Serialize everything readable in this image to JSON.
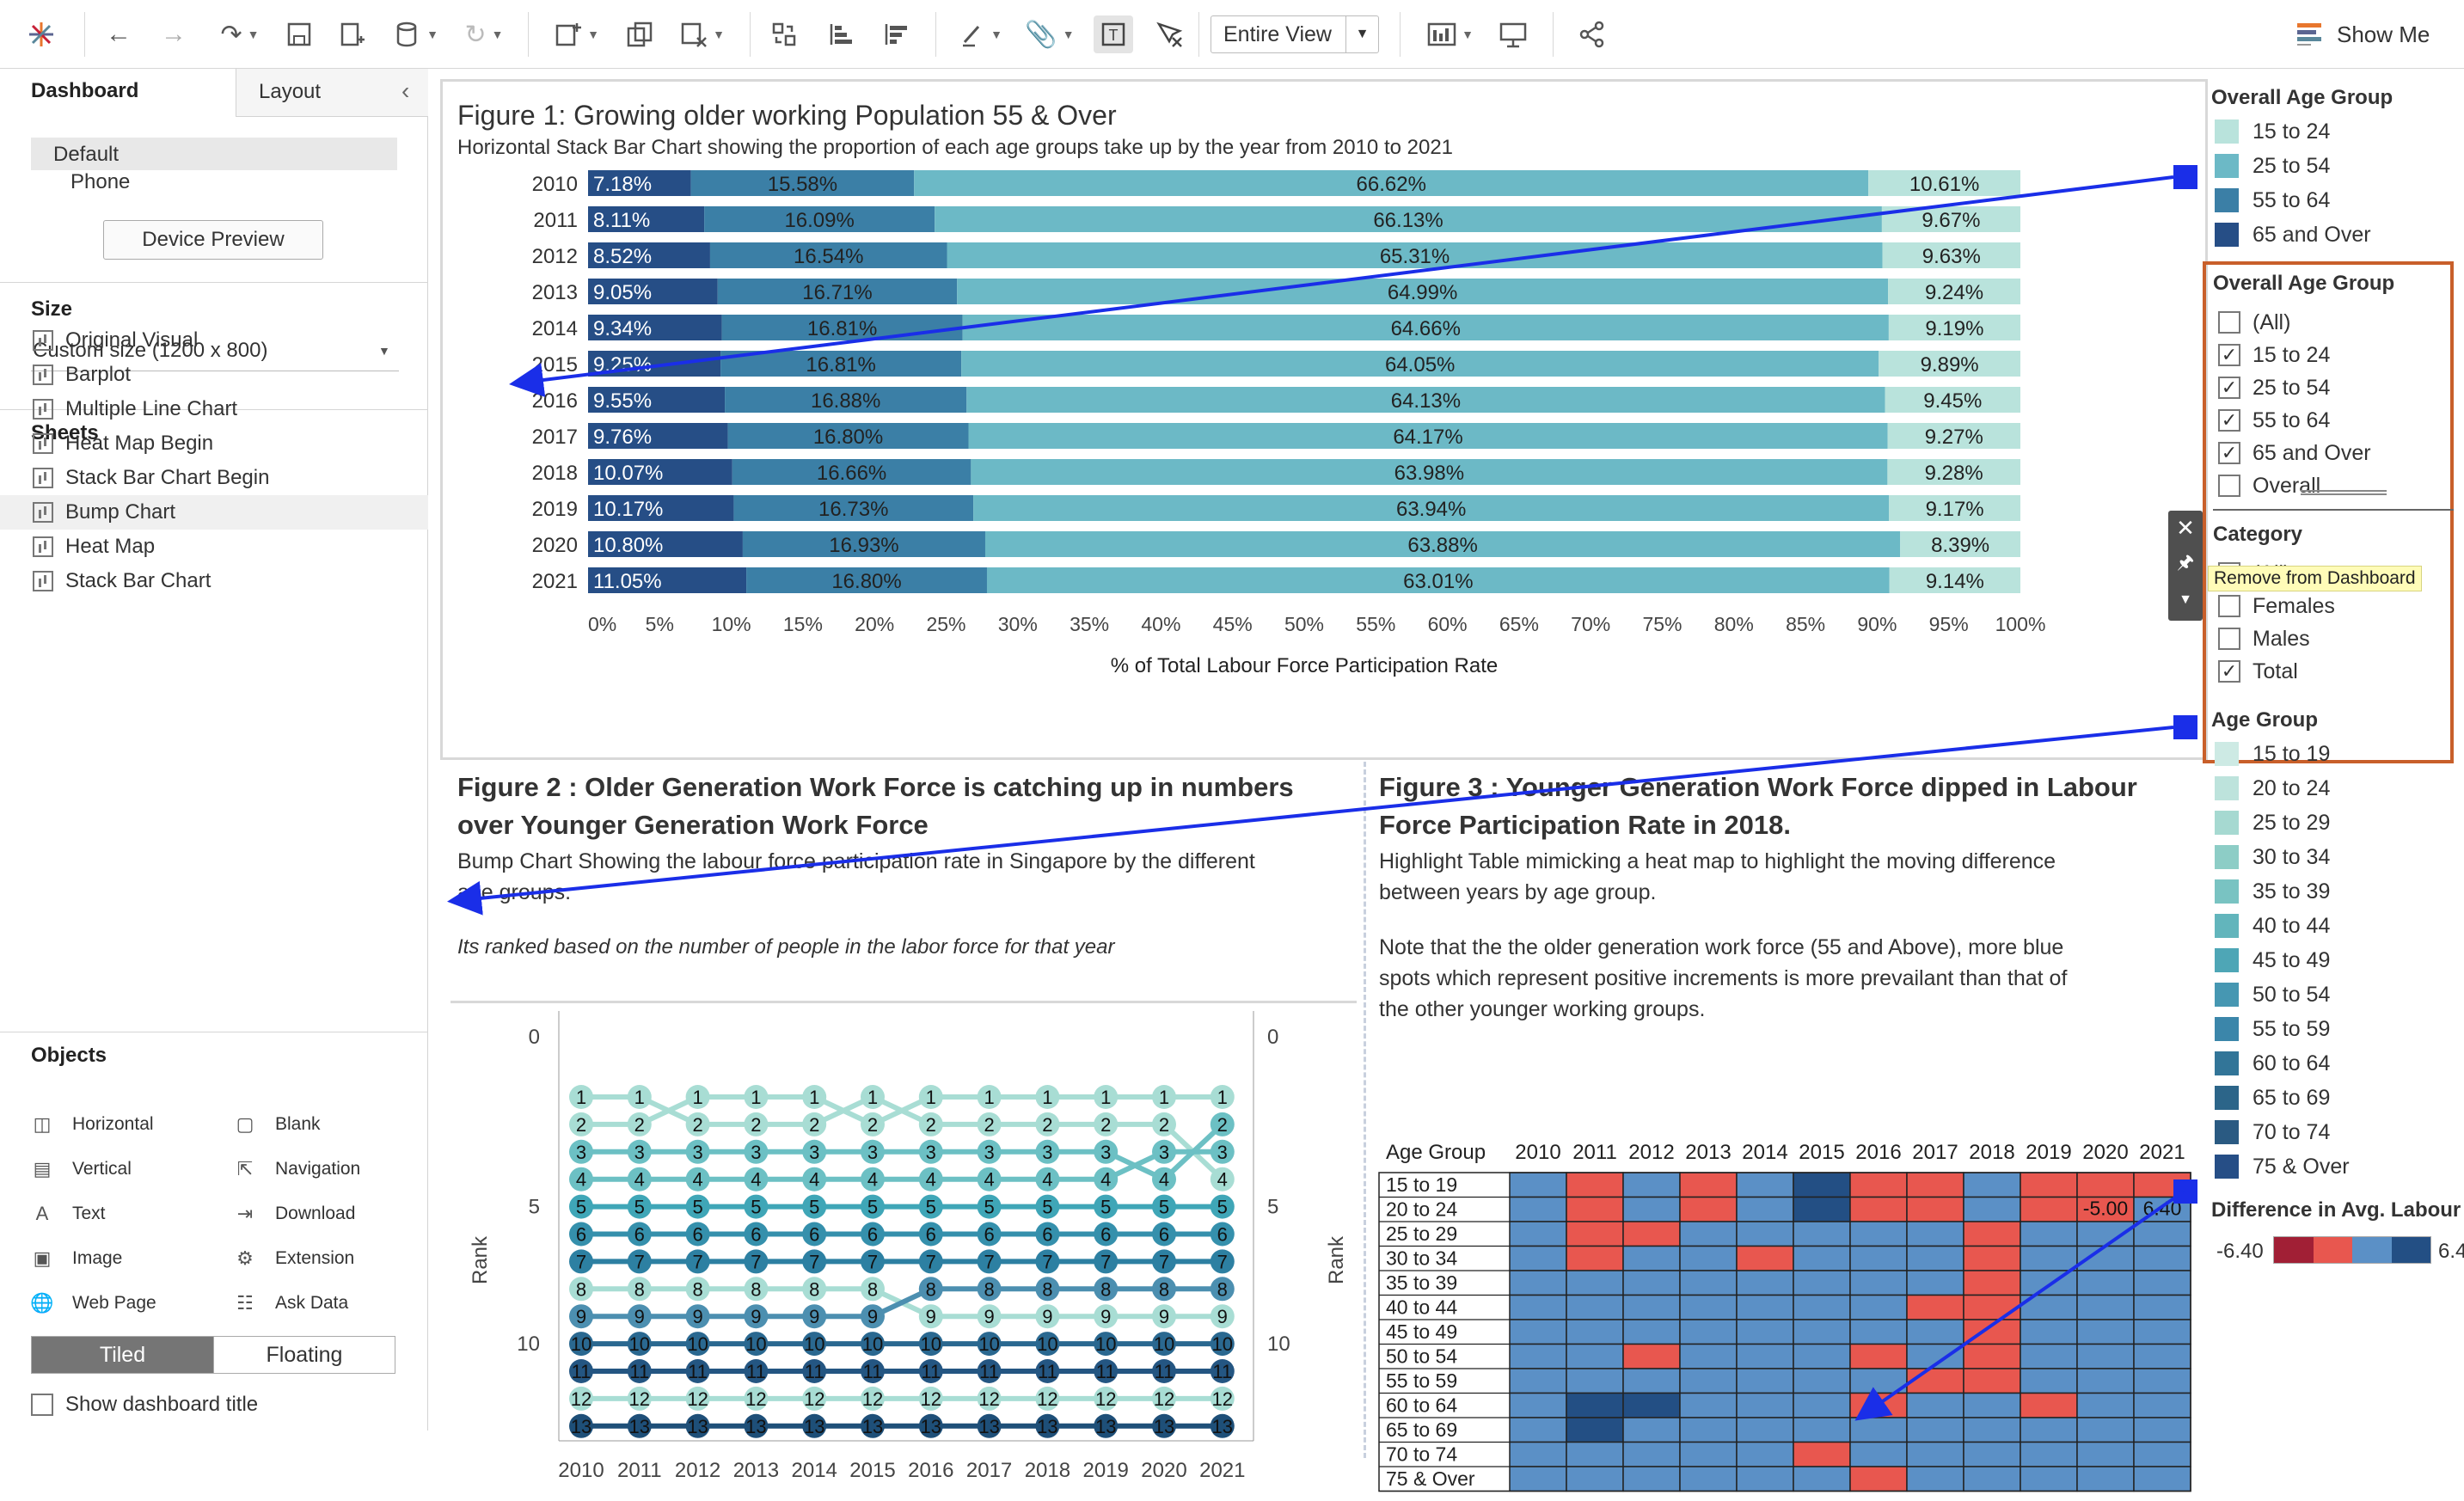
{
  "toolbar": {
    "view_select": "Entire View",
    "show_me": "Show Me"
  },
  "left_panel": {
    "tabs": [
      "Dashboard",
      "Layout"
    ],
    "devices": [
      "Default",
      "Phone"
    ],
    "device_preview": "Device Preview",
    "size_label": "Size",
    "size_value": "Custom size (1200 x 800)",
    "sheets_label": "Sheets",
    "sheets": [
      "Original Visual",
      "Barplot",
      "Multiple Line Chart",
      "Heat Map Begin",
      "Stack Bar Chart Begin",
      "Bump Chart",
      "Heat Map",
      "Stack Bar Chart"
    ],
    "objects_label": "Objects",
    "objects": [
      [
        "Horizontal",
        "Blank"
      ],
      [
        "Vertical",
        "Navigation"
      ],
      [
        "Text",
        "Download"
      ],
      [
        "Image",
        "Extension"
      ],
      [
        "Web Page",
        "Ask Data"
      ]
    ],
    "layout_modes": [
      "Tiled",
      "Floating"
    ],
    "show_title": "Show dashboard title"
  },
  "fig1": {
    "title": "Figure 1: Growing older working Population 55 & Over",
    "subtitle": "Horizontal Stack Bar Chart showing the proportion of each age groups take up by the year from 2010 to 2021",
    "xlabel": "% of Total Labour Force Participation Rate"
  },
  "fig2": {
    "title_line1": "Figure 2 : Older Generation Work Force is catching up in numbers",
    "title_line2": "over  Younger Generation Work Force",
    "sub1": "Bump Chart Showing the labour force participation rate in Singapore by the different",
    "sub2": "age groups.",
    "note": "Its ranked based on the number of people in the labor force for that year",
    "ylabel": "Rank"
  },
  "fig3": {
    "title_line1": "Figure 3 : Younger Generation Work Force dipped in Labour",
    "title_line2": "Force Participation Rate in 2018.",
    "sub1": "Highlight Table mimicking a heat map to highlight the moving difference",
    "sub2": "between years by age group.",
    "note1": "Note that the the older generation work force (55 and Above), more blue",
    "note2": "spots which represent positive increments is more  prevailant than that of",
    "note3": "the other younger working groups.",
    "col_header": "Age Group"
  },
  "right_panel": {
    "legend1_title": "Overall Age Group",
    "legend1": [
      "15 to 24",
      "25 to 54",
      "55 to 64",
      "65 and Over"
    ],
    "filter1_title": "Overall Age Group",
    "filter1": [
      "(All)",
      "15 to 24",
      "25 to 54",
      "55 to 64",
      "65 and Over",
      "Overall"
    ],
    "filter1_checked": [
      false,
      true,
      true,
      true,
      true,
      false
    ],
    "filter2_title": "Category",
    "filter2": [
      "(All)",
      "Females",
      "Males",
      "Total"
    ],
    "filter2_checked": [
      false,
      false,
      false,
      true
    ],
    "tooltip": "Remove from Dashboard",
    "legend2_title": "Age Group",
    "legend2": [
      "15 to 19",
      "20 to 24",
      "25 to 29",
      "30 to 34",
      "35 to 39",
      "40 to 44",
      "45 to 49",
      "50 to 54",
      "55 to 59",
      "60 to 64",
      "65 to 69",
      "70 to 74",
      "75 & Over"
    ],
    "diff_title": "Difference in Avg. Labour",
    "diff_min": "-6.40",
    "diff_max": "6.4"
  },
  "colors": {
    "a15": "#b9e3dc",
    "a25": "#6cb9c6",
    "a55": "#3b7fa6",
    "a65": "#264e86",
    "heat_pos": "#5b90c6",
    "heat_neg": "#e8574f",
    "heat_dark": "#234f84",
    "accent": "#c85f2a",
    "arrow": "#1a2ee8"
  },
  "chart_data": [
    {
      "type": "bar",
      "title": "Figure 1: Growing older working Population 55 & Over",
      "xlabel": "% of Total Labour Force Participation Rate",
      "categories": [
        "2010",
        "2011",
        "2012",
        "2013",
        "2014",
        "2015",
        "2016",
        "2017",
        "2018",
        "2019",
        "2020",
        "2021"
      ],
      "series": [
        {
          "name": "65 and Over",
          "values": [
            7.18,
            8.11,
            8.52,
            9.05,
            9.34,
            9.25,
            9.55,
            9.76,
            10.07,
            10.17,
            10.8,
            11.05
          ]
        },
        {
          "name": "55 to 64",
          "values": [
            15.58,
            16.09,
            16.54,
            16.71,
            16.81,
            16.81,
            16.88,
            16.8,
            16.66,
            16.73,
            16.93,
            16.8
          ]
        },
        {
          "name": "25 to 54",
          "values": [
            66.62,
            66.13,
            65.31,
            64.99,
            64.66,
            64.05,
            64.13,
            64.17,
            63.98,
            63.94,
            63.88,
            63.01
          ]
        },
        {
          "name": "15 to 24",
          "values": [
            10.61,
            9.67,
            9.63,
            9.24,
            9.19,
            9.89,
            9.45,
            9.27,
            9.28,
            9.17,
            8.39,
            9.14
          ]
        }
      ],
      "labels": [
        [
          "7.18%",
          "15.58%",
          "66.62%",
          "10.61%"
        ],
        [
          "8.11%",
          "16.09%",
          "66.13%",
          "9.67%"
        ],
        [
          "8.52%",
          "16.54%",
          "65.31%",
          "9.63%"
        ],
        [
          "9.05%",
          "16.71%",
          "64.99%",
          "9.24%"
        ],
        [
          "9.34%",
          "16.81%",
          "64.66%",
          "9.19%"
        ],
        [
          "9.25%",
          "16.81%",
          "64.05%",
          "9.89%"
        ],
        [
          "9.55%",
          "16.88%",
          "64.13%",
          "9.45%"
        ],
        [
          "9.76%",
          "16.80%",
          "64.17%",
          "9.27%"
        ],
        [
          "10.07%",
          "16.66%",
          "63.98%",
          "9.28%"
        ],
        [
          "10.17%",
          "16.73%",
          "63.94%",
          "9.17%"
        ],
        [
          "10.80%",
          "16.93%",
          "63.88%",
          "8.39%"
        ],
        [
          "11.05%",
          "16.80%",
          "63.01%",
          "9.14%"
        ]
      ],
      "x_ticks": [
        "0%",
        "5%",
        "10%",
        "15%",
        "20%",
        "25%",
        "30%",
        "35%",
        "40%",
        "45%",
        "50%",
        "55%",
        "60%",
        "65%",
        "70%",
        "75%",
        "80%",
        "85%",
        "90%",
        "95%",
        "100%"
      ],
      "xlim": [
        0,
        100
      ]
    },
    {
      "type": "line",
      "title": "Figure 2 : Older Generation Work Force is catching up in numbers over  Younger Generation Work Force",
      "x": [
        "2010",
        "2011",
        "2012",
        "2013",
        "2014",
        "2015",
        "2016",
        "2017",
        "2018",
        "2019",
        "2020",
        "2021"
      ],
      "ylabel": "Rank",
      "y_ticks": [
        "0",
        "5",
        "10"
      ],
      "ylim": [
        0,
        13
      ],
      "series": [
        {
          "values": [
            1,
            1,
            2,
            2,
            2,
            1,
            2,
            2,
            2,
            2,
            2,
            4
          ]
        },
        {
          "values": [
            2,
            2,
            1,
            1,
            1,
            2,
            1,
            1,
            1,
            1,
            1,
            1
          ]
        },
        {
          "values": [
            3,
            3,
            3,
            3,
            3,
            3,
            3,
            3,
            3,
            3,
            4,
            2
          ]
        },
        {
          "values": [
            4,
            4,
            4,
            4,
            4,
            4,
            4,
            4,
            4,
            4,
            3,
            3
          ]
        },
        {
          "values": [
            5,
            5,
            5,
            5,
            5,
            5,
            5,
            5,
            5,
            5,
            5,
            5
          ]
        },
        {
          "values": [
            6,
            6,
            6,
            6,
            6,
            6,
            6,
            6,
            6,
            6,
            6,
            6
          ]
        },
        {
          "values": [
            7,
            7,
            7,
            7,
            7,
            7,
            7,
            7,
            7,
            7,
            7,
            7
          ]
        },
        {
          "values": [
            8,
            8,
            8,
            8,
            8,
            8,
            9,
            9,
            9,
            9,
            9,
            9
          ]
        },
        {
          "values": [
            9,
            9,
            9,
            9,
            9,
            9,
            8,
            8,
            8,
            8,
            8,
            8
          ]
        },
        {
          "values": [
            10,
            10,
            10,
            10,
            10,
            10,
            10,
            10,
            10,
            10,
            10,
            10
          ]
        },
        {
          "values": [
            11,
            11,
            11,
            11,
            11,
            11,
            11,
            11,
            11,
            11,
            11,
            11
          ]
        },
        {
          "values": [
            12,
            12,
            12,
            12,
            12,
            12,
            12,
            12,
            12,
            12,
            12,
            12
          ]
        },
        {
          "values": [
            13,
            13,
            13,
            13,
            13,
            13,
            13,
            13,
            13,
            13,
            13,
            13
          ]
        }
      ]
    },
    {
      "type": "heatmap",
      "title": "Figure 3 : Younger Generation Work Force dipped in Labour Force Participation Rate in 2018.",
      "x": [
        "2010",
        "2011",
        "2012",
        "2013",
        "2014",
        "2015",
        "2016",
        "2017",
        "2018",
        "2019",
        "2020",
        "2021"
      ],
      "y": [
        "15 to 19",
        "20 to 24",
        "25 to 29",
        "30 to 34",
        "35 to 39",
        "40 to 44",
        "45 to 49",
        "50 to 54",
        "55 to 59",
        "60 to 64",
        "65 to 69",
        "70 to 74",
        "75 & Over"
      ],
      "cell_sign": [
        [
          "p",
          "n",
          "p",
          "n",
          "p",
          "d",
          "n",
          "n",
          "p",
          "n",
          "n",
          "n"
        ],
        [
          "p",
          "n",
          "p",
          "n",
          "p",
          "d",
          "n",
          "n",
          "p",
          "n",
          "n",
          "p"
        ],
        [
          "p",
          "n",
          "n",
          "p",
          "p",
          "p",
          "p",
          "p",
          "n",
          "p",
          "p",
          "p"
        ],
        [
          "p",
          "n",
          "p",
          "p",
          "n",
          "p",
          "p",
          "p",
          "n",
          "p",
          "p",
          "p"
        ],
        [
          "p",
          "p",
          "p",
          "p",
          "p",
          "p",
          "p",
          "p",
          "n",
          "p",
          "p",
          "p"
        ],
        [
          "p",
          "p",
          "p",
          "p",
          "p",
          "p",
          "p",
          "n",
          "n",
          "p",
          "p",
          "p"
        ],
        [
          "p",
          "p",
          "p",
          "p",
          "p",
          "p",
          "p",
          "p",
          "n",
          "p",
          "p",
          "p"
        ],
        [
          "p",
          "p",
          "n",
          "p",
          "p",
          "p",
          "n",
          "p",
          "n",
          "p",
          "p",
          "p"
        ],
        [
          "p",
          "p",
          "p",
          "p",
          "p",
          "p",
          "p",
          "n",
          "n",
          "p",
          "p",
          "p"
        ],
        [
          "p",
          "d",
          "d",
          "p",
          "p",
          "p",
          "n",
          "p",
          "p",
          "n",
          "p",
          "p"
        ],
        [
          "p",
          "d",
          "p",
          "p",
          "p",
          "p",
          "p",
          "p",
          "p",
          "p",
          "p",
          "p"
        ],
        [
          "p",
          "p",
          "p",
          "p",
          "p",
          "n",
          "p",
          "p",
          "p",
          "p",
          "p",
          "p"
        ],
        [
          "p",
          "p",
          "p",
          "p",
          "p",
          "p",
          "n",
          "p",
          "p",
          "p",
          "p",
          "p"
        ]
      ],
      "cell_labels": [
        {
          "row": 1,
          "col": 10,
          "text": "-5.00"
        },
        {
          "row": 1,
          "col": 11,
          "text": "6.40"
        }
      ]
    }
  ]
}
